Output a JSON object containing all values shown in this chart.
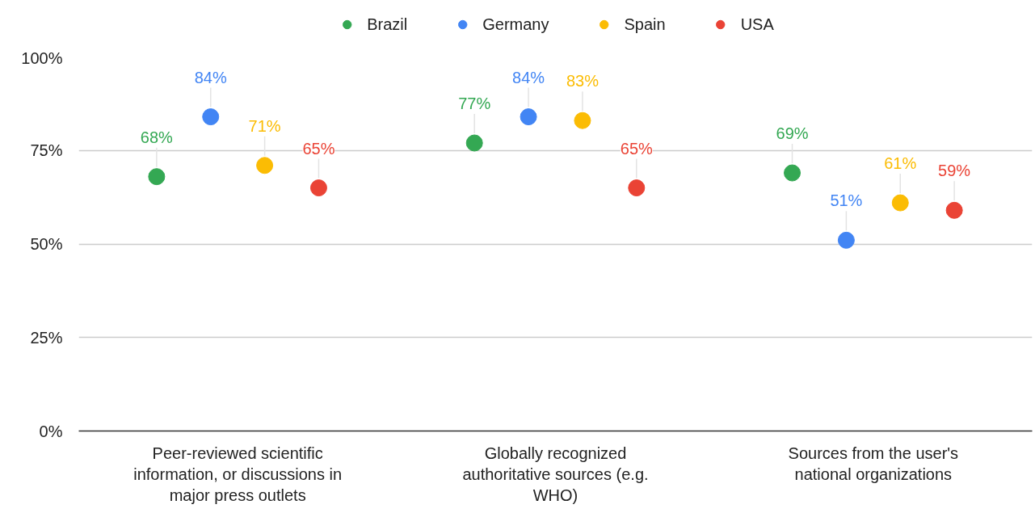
{
  "chart_data": {
    "type": "scatter",
    "categories": [
      "Peer-reviewed scientific information, or discussions in major press outlets",
      "Globally recognized authoritative sources (e.g. WHO)",
      "Sources from the user's national organizations"
    ],
    "series": [
      {
        "name": "Brazil",
        "color": "#34a853",
        "values": [
          68,
          77,
          69
        ],
        "value_labels": [
          "68%",
          "77%",
          "69%"
        ]
      },
      {
        "name": "Germany",
        "color": "#4285f4",
        "values": [
          84,
          84,
          51
        ],
        "value_labels": [
          "84%",
          "84%",
          "51%"
        ]
      },
      {
        "name": "Spain",
        "color": "#fbbc04",
        "values": [
          71,
          83,
          61
        ],
        "value_labels": [
          "71%",
          "83%",
          "61%"
        ]
      },
      {
        "name": "USA",
        "color": "#ea4335",
        "values": [
          65,
          65,
          59
        ],
        "value_labels": [
          "65%",
          "65%",
          "59%"
        ]
      }
    ],
    "ylim": [
      0,
      100
    ],
    "yticks": [
      {
        "value": 0,
        "label": "0%"
      },
      {
        "value": 25,
        "label": "25%"
      },
      {
        "value": 50,
        "label": "50%"
      },
      {
        "value": 75,
        "label": "75%"
      },
      {
        "value": 100,
        "label": "100%"
      }
    ],
    "grid": "y",
    "legend": "top",
    "marker": "circle"
  }
}
